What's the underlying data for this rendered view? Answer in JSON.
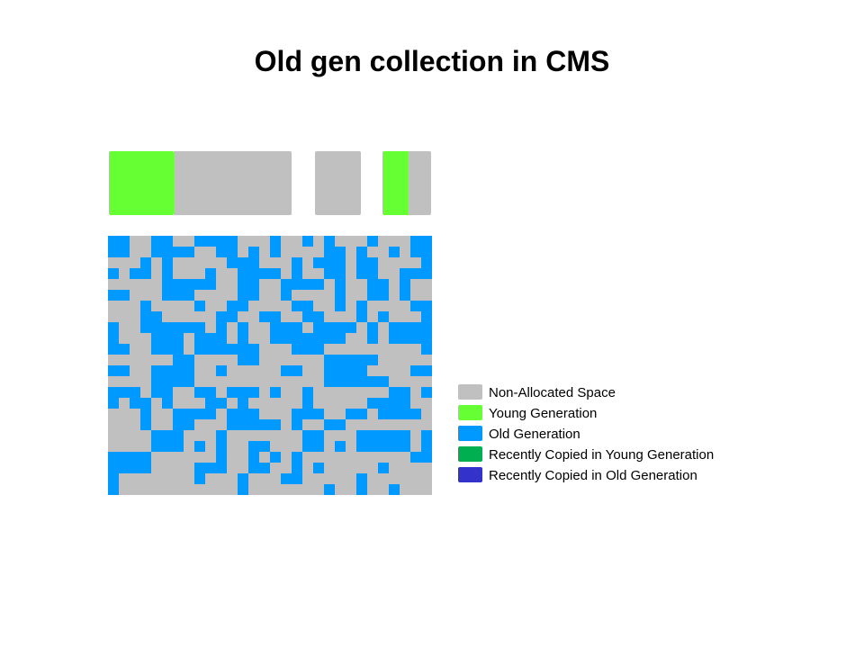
{
  "title": "Old gen collection in CMS",
  "colors": {
    "non_allocated": "#c0c0c0",
    "young": "#66ff33",
    "old": "#0099ff",
    "recent_young": "#00b050",
    "recent_old": "#3333cc"
  },
  "young_gen_bar": [
    {
      "kind": "young"
    },
    {
      "kind": "non_allocated"
    },
    {
      "kind": "non_allocated"
    },
    {
      "kind": "young"
    },
    {
      "kind": "non_allocated"
    }
  ],
  "old_gen_map": {
    "legend_key": {
      "0": "non_allocated",
      "1": "old"
    },
    "rows": [
      "110011001111000100101000100011",
      "110011110011010100001101001011",
      "000101000001110001011101100001",
      "101101000100111101001101100111",
      "000001111100110011110100110100",
      "110001110000110010000100110100",
      "000100001001100001100101000011",
      "000110000011001100110001010001",
      "100111111010100111011110101111",
      "100011101110100111111100101111",
      "110011101111110001110000000001",
      "000000110000110000001111100000",
      "110011110010000011001111000011",
      "000011110000000000001111110000",
      "111011001101110100100000001101",
      "101101000110100000100000111100",
      "000100111101110001110011011110",
      "000100110001111101001100000000",
      "000011100010000000110001111101",
      "000011101010011000110101111101",
      "111100000010010101000000000011",
      "111100001110011001010000010000",
      "100000001000100011000001000000",
      "100000000000100000001001001000"
    ]
  },
  "legend": [
    {
      "label": "Non-Allocated Space",
      "color": "#c0c0c0"
    },
    {
      "label": "Young Generation",
      "color": "#66ff33"
    },
    {
      "label": "Old Generation",
      "color": "#0099ff"
    },
    {
      "label": "Recently Copied in Young Generation",
      "color": "#00b050"
    },
    {
      "label": "Recently Copied in Old Generation",
      "color": "#3333cc"
    }
  ]
}
